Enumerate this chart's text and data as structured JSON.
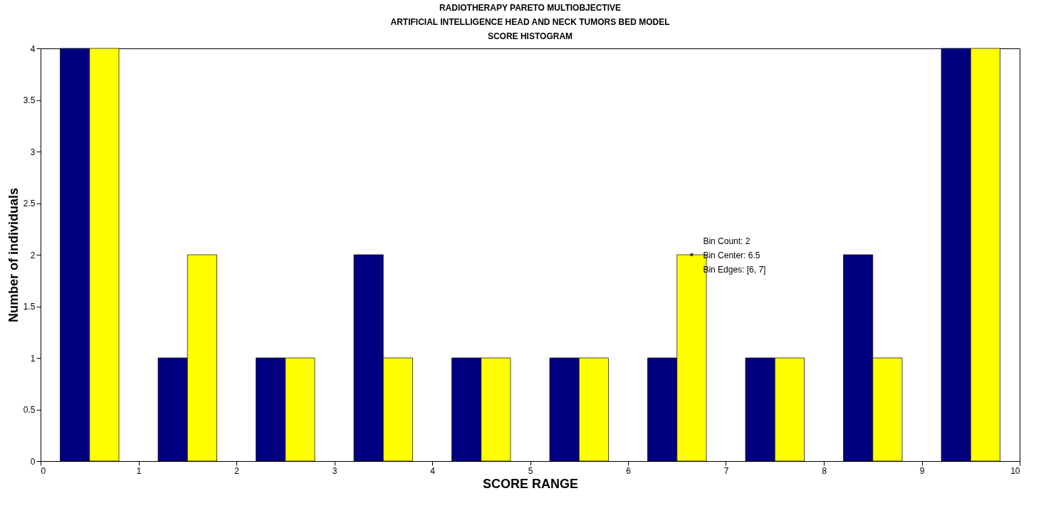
{
  "chart_data": {
    "type": "histogram",
    "title": "RADIOTHERAPY PARETO MULTIOBJECTIVE\nARTIFICIAL INTELLIGENCE HEAD AND NECK TUMORS BED MODEL\nSCORE HISTOGRAM",
    "xlabel": "SCORE RANGE",
    "ylabel": "Number of individuals",
    "bins": [
      0,
      1,
      2,
      3,
      4,
      5,
      6,
      7,
      8,
      9,
      10
    ],
    "series": [
      {
        "color": "#000080",
        "values": [
          4,
          1,
          1,
          2,
          1,
          1,
          1,
          1,
          2,
          4
        ]
      },
      {
        "color": "#ffff00",
        "values": [
          4,
          2,
          1,
          1,
          1,
          1,
          2,
          1,
          1,
          4
        ]
      }
    ],
    "xlim": [
      0,
      10
    ],
    "xticks": [
      0,
      1,
      2,
      3,
      4,
      5,
      6,
      7,
      8,
      9,
      10
    ],
    "ylim": [
      0,
      4
    ],
    "yticks": [
      0,
      0.5,
      1,
      1.5,
      2,
      2.5,
      3,
      3.5,
      4
    ],
    "annotations": [
      {
        "text": "Bin Count: 2\n\nBin Center: 6.5\nBin Edges: [6, 7]",
        "x": 6.65,
        "y": 2
      }
    ]
  }
}
